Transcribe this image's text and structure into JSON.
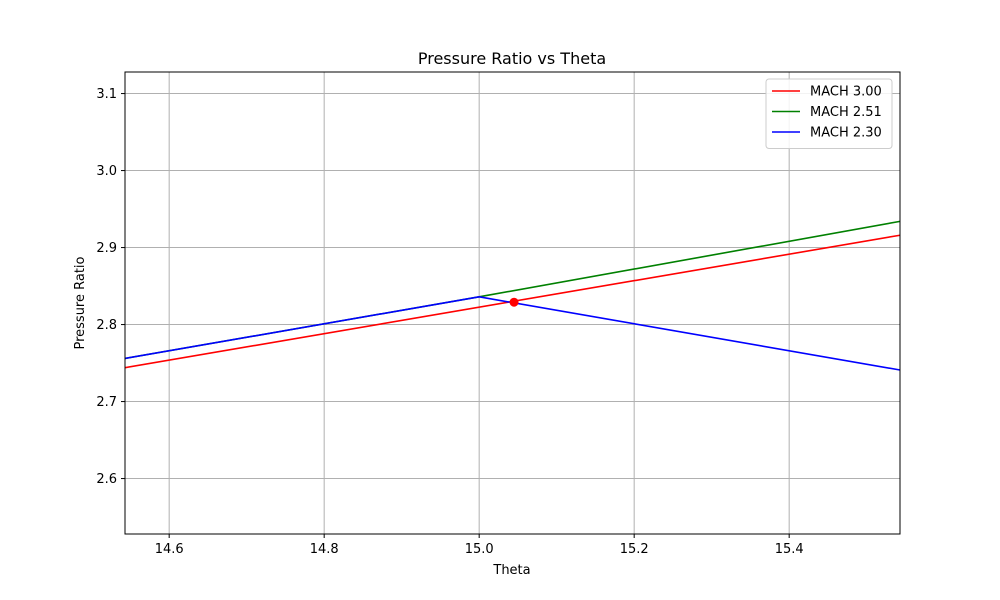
{
  "chart_data": {
    "type": "line",
    "title": "Pressure Ratio vs Theta",
    "xlabel": "Theta",
    "ylabel": "Pressure Ratio",
    "xlim": [
      14.543,
      15.543
    ],
    "ylim": [
      2.528,
      3.128
    ],
    "xticks": [
      14.6,
      14.8,
      15.0,
      15.2,
      15.4
    ],
    "xtick_labels": [
      "14.6",
      "14.8",
      "15.0",
      "15.2",
      "15.4"
    ],
    "yticks": [
      2.6,
      2.7,
      2.8,
      2.9,
      3.0,
      3.1
    ],
    "ytick_labels": [
      "2.6",
      "2.7",
      "2.8",
      "2.9",
      "3.0",
      "3.1"
    ],
    "grid": true,
    "legend_position": "top-right",
    "series": [
      {
        "name": "MACH 3.00",
        "color": "#ff0000",
        "x": [
          14.543,
          15.543
        ],
        "y": [
          2.744,
          2.916
        ]
      },
      {
        "name": "MACH 2.51",
        "color": "#008000",
        "x": [
          14.543,
          15.0,
          15.543
        ],
        "y": [
          2.756,
          2.836,
          2.934
        ]
      },
      {
        "name": "MACH 2.30",
        "color": "#0000ff",
        "x": [
          14.543,
          15.0,
          15.543
        ],
        "y": [
          2.756,
          2.836,
          2.741
        ]
      }
    ],
    "markers": [
      {
        "x": 15.045,
        "y": 2.829,
        "color": "#ff0000"
      }
    ]
  }
}
